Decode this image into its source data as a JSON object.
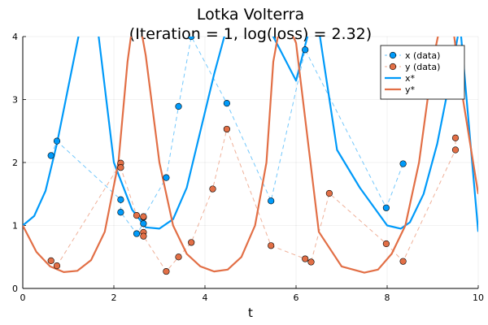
{
  "chart_data": {
    "type": "line",
    "title": "Lotka Volterra",
    "subtitle": "(Iteration = 1, log(loss) = 2.32)",
    "xlabel": "t",
    "ylabel": "",
    "xlim": [
      0,
      10
    ],
    "ylim": [
      0,
      4
    ],
    "xticks": [
      "0",
      "2",
      "4",
      "6",
      "8",
      "10"
    ],
    "yticks": [
      "0",
      "1",
      "2",
      "3",
      "4"
    ],
    "grid": true,
    "legend_position": "top-right",
    "colors": {
      "x": "#009af9",
      "y": "#e26f46"
    },
    "series": [
      {
        "name": "x (data)",
        "kind": "scatter",
        "color": "#009af9",
        "points": [
          [
            0.62,
            2.11
          ],
          [
            0.75,
            2.34
          ],
          [
            2.15,
            1.41
          ],
          [
            2.15,
            1.21
          ],
          [
            2.5,
            0.87
          ],
          [
            2.65,
            1.03
          ],
          [
            2.65,
            1.13
          ],
          [
            3.15,
            1.76
          ],
          [
            3.42,
            2.89
          ],
          [
            3.7,
            4.0
          ],
          [
            4.48,
            2.94
          ],
          [
            5.45,
            1.39
          ],
          [
            6.2,
            3.79
          ],
          [
            7.98,
            1.28
          ],
          [
            8.35,
            1.98
          ]
        ]
      },
      {
        "name": "y (data)",
        "kind": "scatter",
        "color": "#e26f46",
        "points": [
          [
            0.62,
            0.44
          ],
          [
            0.75,
            0.36
          ],
          [
            2.15,
            1.99
          ],
          [
            2.15,
            1.92
          ],
          [
            2.5,
            1.16
          ],
          [
            2.65,
            1.14
          ],
          [
            2.65,
            0.89
          ],
          [
            2.65,
            0.83
          ],
          [
            3.15,
            0.27
          ],
          [
            3.42,
            0.5
          ],
          [
            3.7,
            0.73
          ],
          [
            4.17,
            1.58
          ],
          [
            4.48,
            2.53
          ],
          [
            5.45,
            0.68
          ],
          [
            6.2,
            0.47
          ],
          [
            6.33,
            0.42
          ],
          [
            6.73,
            1.51
          ],
          [
            7.98,
            0.71
          ],
          [
            8.35,
            0.43
          ],
          [
            9.5,
            2.2
          ],
          [
            9.5,
            2.39
          ]
        ]
      },
      {
        "name": "x*",
        "kind": "line",
        "color": "#009af9",
        "x": [
          0,
          0.25,
          0.5,
          0.75,
          1.0,
          1.25,
          1.4,
          1.5,
          2.0,
          2.4,
          2.7,
          3.0,
          3.3,
          3.6,
          3.9,
          4.2,
          4.5,
          5.0,
          5.5,
          6.0,
          6.25,
          6.4,
          6.9,
          7.4,
          8.0,
          8.3,
          8.5,
          8.8,
          9.1,
          9.4,
          9.6,
          10.0
        ],
        "y": [
          1.0,
          1.15,
          1.55,
          2.3,
          3.2,
          4.1,
          5.0,
          5.0,
          2.0,
          1.25,
          0.97,
          0.95,
          1.1,
          1.6,
          2.5,
          3.4,
          4.2,
          4.4,
          4.0,
          3.3,
          4.0,
          4.6,
          2.2,
          1.6,
          1.0,
          0.95,
          1.05,
          1.5,
          2.3,
          3.4,
          4.2,
          0.9
        ]
      },
      {
        "name": "y*",
        "kind": "line",
        "color": "#e26f46",
        "x": [
          0,
          0.3,
          0.6,
          0.9,
          1.2,
          1.5,
          1.8,
          2.1,
          2.3,
          2.45,
          2.55,
          2.7,
          3.0,
          3.3,
          3.6,
          3.9,
          4.2,
          4.5,
          4.8,
          5.1,
          5.35,
          5.5,
          5.7,
          6.0,
          6.5,
          7.0,
          7.5,
          7.8,
          8.1,
          8.4,
          8.7,
          9.0,
          9.2,
          9.4,
          9.6,
          10.0
        ],
        "y": [
          1.0,
          0.58,
          0.35,
          0.26,
          0.28,
          0.45,
          0.9,
          2.0,
          3.6,
          4.4,
          4.3,
          3.7,
          2.0,
          1.0,
          0.55,
          0.35,
          0.27,
          0.3,
          0.5,
          1.0,
          2.0,
          3.6,
          4.4,
          3.9,
          0.9,
          0.35,
          0.25,
          0.3,
          0.55,
          1.0,
          2.0,
          3.6,
          4.3,
          4.4,
          3.3,
          1.5
        ]
      }
    ]
  }
}
